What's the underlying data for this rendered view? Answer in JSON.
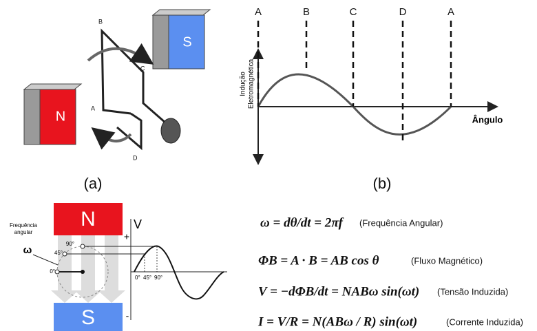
{
  "panel_a": {
    "magnet_n": "N",
    "magnet_s": "S",
    "points": [
      "A",
      "B",
      "C",
      "D"
    ],
    "caption": "(a)"
  },
  "panel_b": {
    "markers": [
      "A",
      "B",
      "C",
      "D",
      "A"
    ],
    "y_axis_label": [
      "Indução",
      "Eletromagnética"
    ],
    "x_axis_label": "Ângulo",
    "caption": "(b)"
  },
  "panel_c": {
    "magnet_n": "N",
    "magnet_s": "S",
    "rotation_label": [
      "Frequência",
      "angular"
    ],
    "omega": "ω",
    "circle_angles": [
      "90°",
      "45°",
      "0°"
    ],
    "axis_label": "V",
    "plus": "+",
    "minus": "-",
    "phase_ticks": [
      "0°",
      "45°",
      "90°"
    ]
  },
  "equations": [
    {
      "formula": "ω = dθ/dt = 2πf",
      "note": "(Frequência Angular)"
    },
    {
      "formula": "ΦB = A · B = AB cos θ",
      "note": "(Fluxo Magnético)"
    },
    {
      "formula": "V = −dΦB/dt = NABω sin(ωt)",
      "note": "(Tensão Induzida)"
    },
    {
      "formula": "I = V/R = N(ABω / R) sin(ωt)",
      "note": "(Corrente Induzida)"
    }
  ]
}
